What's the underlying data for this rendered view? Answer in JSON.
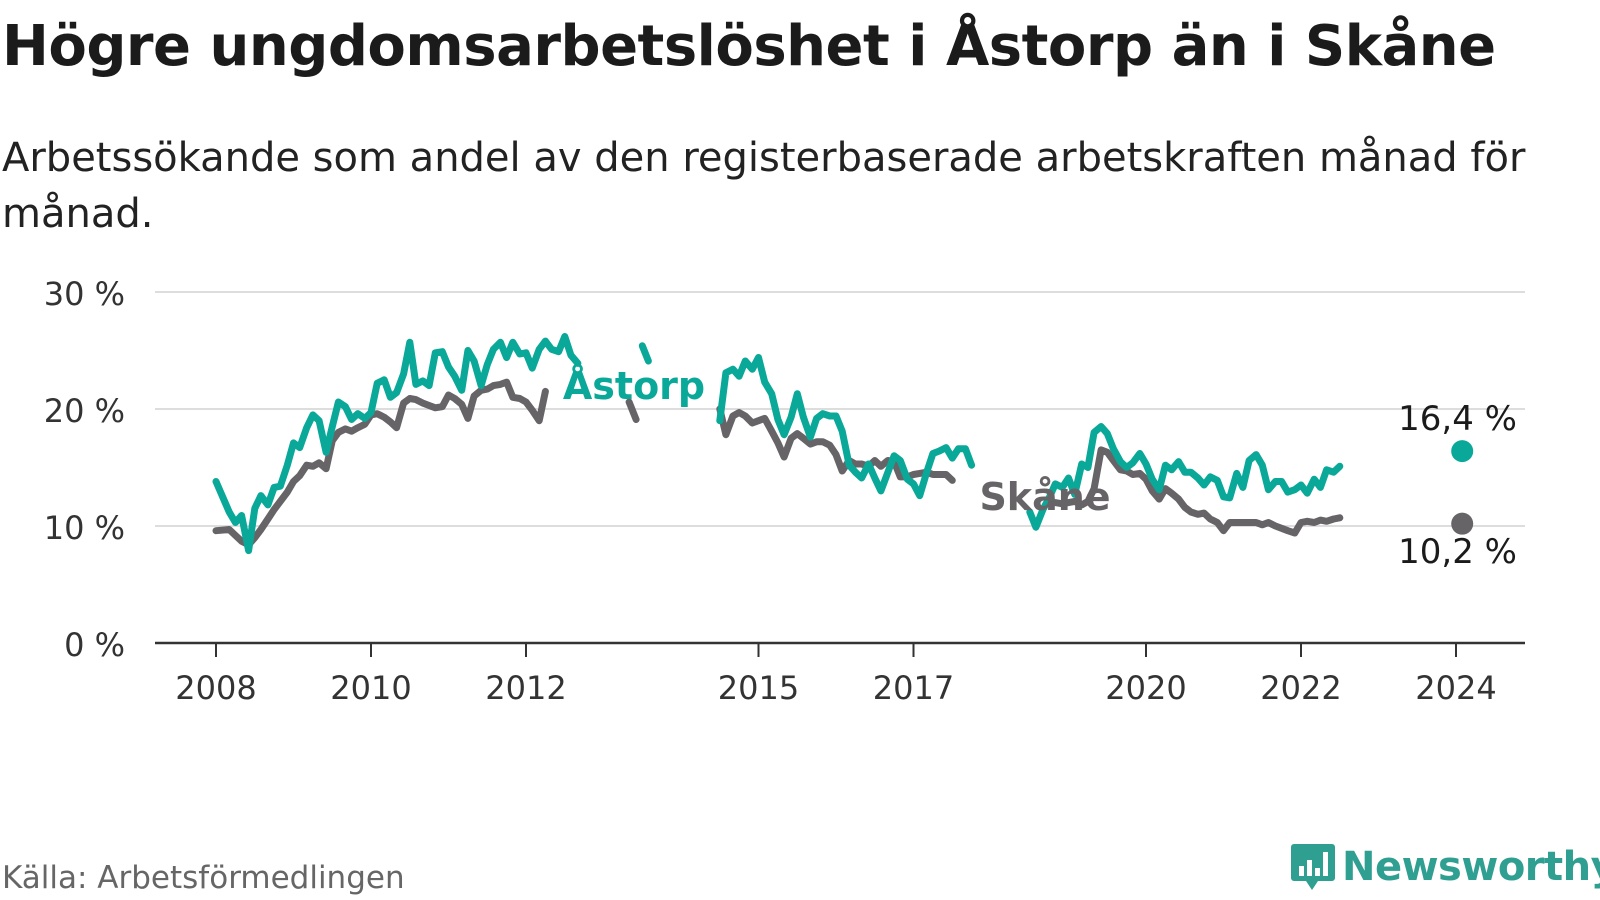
{
  "title": "Högre ungdomsarbetslöshet i Åstorp än i Skåne",
  "subtitle": "Arbetssökande som andel av den registerbaserade arbetskraften månad för månad.",
  "source": "Källa: Arbetsförmedlingen",
  "logo": {
    "text": "Newsworthy",
    "icon": "bar-chart-speech-icon"
  },
  "colors": {
    "astorp": "#0aa898",
    "skane": "#676468",
    "grid": "#dddddd",
    "axis": "#333333"
  },
  "chart_data": {
    "type": "line",
    "title": "Högre ungdomsarbetslöshet i Åstorp än i Skåne",
    "ylabel": "",
    "xlabel": "",
    "ylim": [
      0,
      30
    ],
    "xlim": [
      2008,
      2024.25
    ],
    "y_ticks": [
      0,
      10,
      20,
      30
    ],
    "y_tick_labels": [
      "0 %",
      "10 %",
      "20 %",
      "30 %"
    ],
    "x_ticks": [
      2008,
      2010,
      2012,
      2015,
      2017,
      2020,
      2022,
      2024
    ],
    "x_tick_labels": [
      "2008",
      "2010",
      "2012",
      "2015",
      "2017",
      "2020",
      "2022",
      "2024"
    ],
    "grid": true,
    "series": [
      {
        "name": "Åstorp",
        "label": "Åstorp",
        "end_label": "16,4 %",
        "end_value": 16.4,
        "color": "#0aa898",
        "points": [
          [
            2008.0,
            13.8
          ],
          [
            2008.17,
            11.2
          ],
          [
            2008.25,
            10.3
          ],
          [
            2008.33,
            10.9
          ],
          [
            2008.42,
            7.9
          ],
          [
            2008.5,
            11.5
          ],
          [
            2008.58,
            12.6
          ],
          [
            2008.67,
            11.8
          ],
          [
            2008.75,
            13.3
          ],
          [
            2008.83,
            13.4
          ],
          [
            2008.92,
            15.2
          ],
          [
            2009.0,
            17.1
          ],
          [
            2009.08,
            16.7
          ],
          [
            2009.17,
            18.4
          ],
          [
            2009.25,
            19.5
          ],
          [
            2009.33,
            19.0
          ],
          [
            2009.42,
            16.3
          ],
          [
            2009.5,
            18.5
          ],
          [
            2009.58,
            20.6
          ],
          [
            2009.67,
            20.2
          ],
          [
            2009.75,
            19.1
          ],
          [
            2009.83,
            19.6
          ],
          [
            2009.92,
            19.2
          ],
          [
            2010.0,
            19.7
          ],
          [
            2010.08,
            22.2
          ],
          [
            2010.17,
            22.5
          ],
          [
            2010.25,
            21.0
          ],
          [
            2010.33,
            21.4
          ],
          [
            2010.42,
            23.0
          ],
          [
            2010.5,
            25.7
          ],
          [
            2010.58,
            22.1
          ],
          [
            2010.67,
            22.4
          ],
          [
            2010.75,
            22.0
          ],
          [
            2010.83,
            24.8
          ],
          [
            2010.92,
            24.9
          ],
          [
            2011.0,
            23.6
          ],
          [
            2011.08,
            22.8
          ],
          [
            2011.17,
            21.6
          ],
          [
            2011.25,
            25.0
          ],
          [
            2011.33,
            24.1
          ],
          [
            2011.42,
            22.0
          ],
          [
            2011.5,
            23.8
          ],
          [
            2011.58,
            25.1
          ],
          [
            2011.67,
            25.7
          ],
          [
            2011.75,
            24.4
          ],
          [
            2011.83,
            25.7
          ],
          [
            2011.92,
            24.7
          ],
          [
            2012.0,
            24.8
          ],
          [
            2012.08,
            23.5
          ],
          [
            2012.17,
            25.1
          ],
          [
            2012.25,
            25.8
          ],
          [
            2012.33,
            25.1
          ],
          [
            2012.42,
            24.9
          ],
          [
            2012.5,
            26.2
          ],
          [
            2012.58,
            24.6
          ],
          [
            2012.67,
            23.9
          ],
          [
            2013.5,
            25.4
          ],
          [
            2013.58,
            24.1
          ],
          [
            2014.5,
            19.0
          ],
          [
            2014.58,
            23.1
          ],
          [
            2014.67,
            23.4
          ],
          [
            2014.75,
            22.8
          ],
          [
            2014.83,
            24.1
          ],
          [
            2014.92,
            23.4
          ],
          [
            2015.0,
            24.4
          ],
          [
            2015.08,
            22.3
          ],
          [
            2015.17,
            21.3
          ],
          [
            2015.25,
            19.1
          ],
          [
            2015.33,
            17.8
          ],
          [
            2015.42,
            19.3
          ],
          [
            2015.5,
            21.3
          ],
          [
            2015.58,
            19.3
          ],
          [
            2015.67,
            17.6
          ],
          [
            2015.75,
            19.2
          ],
          [
            2015.83,
            19.6
          ],
          [
            2015.92,
            19.4
          ],
          [
            2016.0,
            19.4
          ],
          [
            2016.08,
            18.1
          ],
          [
            2016.17,
            15.2
          ],
          [
            2016.25,
            14.6
          ],
          [
            2016.33,
            14.1
          ],
          [
            2016.42,
            15.3
          ],
          [
            2016.5,
            14.1
          ],
          [
            2016.58,
            13.0
          ],
          [
            2016.67,
            14.6
          ],
          [
            2016.75,
            16.0
          ],
          [
            2016.83,
            15.6
          ],
          [
            2016.92,
            14.0
          ],
          [
            2017.0,
            13.6
          ],
          [
            2017.08,
            12.6
          ],
          [
            2017.17,
            14.6
          ],
          [
            2017.25,
            16.2
          ],
          [
            2017.33,
            16.4
          ],
          [
            2017.42,
            16.7
          ],
          [
            2017.5,
            15.8
          ],
          [
            2017.58,
            16.6
          ],
          [
            2017.67,
            16.6
          ],
          [
            2017.75,
            15.2
          ],
          [
            2018.5,
            11.2
          ],
          [
            2018.58,
            9.9
          ],
          [
            2018.67,
            11.4
          ],
          [
            2018.75,
            12.4
          ],
          [
            2018.83,
            13.6
          ],
          [
            2018.92,
            13.3
          ],
          [
            2019.0,
            14.1
          ],
          [
            2019.08,
            12.7
          ],
          [
            2019.17,
            15.3
          ],
          [
            2019.25,
            15.0
          ],
          [
            2019.33,
            18.0
          ],
          [
            2019.42,
            18.5
          ],
          [
            2019.5,
            17.9
          ],
          [
            2019.58,
            16.6
          ],
          [
            2019.67,
            15.5
          ],
          [
            2019.75,
            15.0
          ],
          [
            2019.83,
            15.4
          ],
          [
            2019.92,
            16.2
          ],
          [
            2020.0,
            15.3
          ],
          [
            2020.08,
            14.0
          ],
          [
            2020.17,
            13.1
          ],
          [
            2020.25,
            15.2
          ],
          [
            2020.33,
            14.8
          ],
          [
            2020.42,
            15.5
          ],
          [
            2020.5,
            14.6
          ],
          [
            2020.58,
            14.6
          ],
          [
            2020.67,
            14.1
          ],
          [
            2020.75,
            13.5
          ],
          [
            2020.83,
            14.2
          ],
          [
            2020.92,
            13.9
          ],
          [
            2021.0,
            12.5
          ],
          [
            2021.08,
            12.4
          ],
          [
            2021.17,
            14.5
          ],
          [
            2021.25,
            13.3
          ],
          [
            2021.33,
            15.6
          ],
          [
            2021.42,
            16.1
          ],
          [
            2021.5,
            15.2
          ],
          [
            2021.58,
            13.1
          ],
          [
            2021.67,
            13.8
          ],
          [
            2021.75,
            13.8
          ],
          [
            2021.83,
            12.9
          ],
          [
            2021.92,
            13.1
          ],
          [
            2022.0,
            13.5
          ],
          [
            2022.08,
            12.8
          ],
          [
            2022.17,
            14.0
          ],
          [
            2022.25,
            13.3
          ],
          [
            2022.33,
            14.8
          ],
          [
            2022.42,
            14.6
          ],
          [
            2022.5,
            15.1
          ],
          [
            2024.08,
            16.4
          ]
        ]
      },
      {
        "name": "Skåne",
        "label": "Skåne",
        "end_label": "10,2 %",
        "end_value": 10.2,
        "color": "#676468",
        "points": [
          [
            2008.0,
            9.6
          ],
          [
            2008.17,
            9.7
          ],
          [
            2008.25,
            9.2
          ],
          [
            2008.33,
            8.7
          ],
          [
            2008.42,
            8.4
          ],
          [
            2008.5,
            9.0
          ],
          [
            2008.58,
            9.7
          ],
          [
            2008.67,
            10.6
          ],
          [
            2008.75,
            11.4
          ],
          [
            2008.83,
            12.1
          ],
          [
            2008.92,
            12.9
          ],
          [
            2009.0,
            13.8
          ],
          [
            2009.08,
            14.3
          ],
          [
            2009.17,
            15.2
          ],
          [
            2009.25,
            15.1
          ],
          [
            2009.33,
            15.4
          ],
          [
            2009.42,
            14.9
          ],
          [
            2009.5,
            17.3
          ],
          [
            2009.58,
            18.0
          ],
          [
            2009.67,
            18.3
          ],
          [
            2009.75,
            18.1
          ],
          [
            2009.83,
            18.4
          ],
          [
            2009.92,
            18.7
          ],
          [
            2010.0,
            19.5
          ],
          [
            2010.08,
            19.6
          ],
          [
            2010.17,
            19.3
          ],
          [
            2010.25,
            18.9
          ],
          [
            2010.33,
            18.4
          ],
          [
            2010.42,
            20.5
          ],
          [
            2010.5,
            20.9
          ],
          [
            2010.58,
            20.8
          ],
          [
            2010.67,
            20.5
          ],
          [
            2010.75,
            20.3
          ],
          [
            2010.83,
            20.1
          ],
          [
            2010.92,
            20.2
          ],
          [
            2011.0,
            21.2
          ],
          [
            2011.08,
            20.9
          ],
          [
            2011.17,
            20.4
          ],
          [
            2011.25,
            19.2
          ],
          [
            2011.33,
            21.1
          ],
          [
            2011.42,
            21.6
          ],
          [
            2011.5,
            21.7
          ],
          [
            2011.58,
            22.0
          ],
          [
            2011.67,
            22.1
          ],
          [
            2011.75,
            22.3
          ],
          [
            2011.83,
            21.0
          ],
          [
            2011.92,
            20.9
          ],
          [
            2012.0,
            20.6
          ],
          [
            2012.08,
            19.9
          ],
          [
            2012.17,
            19.0
          ],
          [
            2012.25,
            21.5
          ],
          [
            2013.33,
            20.6
          ],
          [
            2013.42,
            19.1
          ],
          [
            2014.5,
            20.0
          ],
          [
            2014.58,
            17.8
          ],
          [
            2014.67,
            19.4
          ],
          [
            2014.75,
            19.7
          ],
          [
            2014.83,
            19.4
          ],
          [
            2014.92,
            18.8
          ],
          [
            2015.0,
            19.0
          ],
          [
            2015.08,
            19.2
          ],
          [
            2015.17,
            18.1
          ],
          [
            2015.25,
            17.1
          ],
          [
            2015.33,
            15.9
          ],
          [
            2015.42,
            17.5
          ],
          [
            2015.5,
            17.9
          ],
          [
            2015.58,
            17.5
          ],
          [
            2015.67,
            17.0
          ],
          [
            2015.75,
            17.2
          ],
          [
            2015.83,
            17.2
          ],
          [
            2015.92,
            16.9
          ],
          [
            2016.0,
            16.1
          ],
          [
            2016.08,
            14.7
          ],
          [
            2016.17,
            15.6
          ],
          [
            2016.25,
            15.3
          ],
          [
            2016.33,
            15.3
          ],
          [
            2016.42,
            15.1
          ],
          [
            2016.5,
            15.6
          ],
          [
            2016.58,
            15.1
          ],
          [
            2016.67,
            15.6
          ],
          [
            2016.75,
            15.5
          ],
          [
            2016.83,
            14.2
          ],
          [
            2016.92,
            14.2
          ],
          [
            2017.0,
            14.4
          ],
          [
            2017.08,
            14.5
          ],
          [
            2017.17,
            14.6
          ],
          [
            2017.25,
            14.4
          ],
          [
            2017.33,
            14.4
          ],
          [
            2017.42,
            14.4
          ],
          [
            2017.5,
            13.9
          ],
          [
            2018.75,
            12.0
          ],
          [
            2018.83,
            12.0
          ],
          [
            2018.92,
            11.9
          ],
          [
            2019.0,
            12.0
          ],
          [
            2019.08,
            12.1
          ],
          [
            2019.17,
            11.8
          ],
          [
            2019.25,
            12.1
          ],
          [
            2019.33,
            13.2
          ],
          [
            2019.42,
            16.5
          ],
          [
            2019.5,
            16.3
          ],
          [
            2019.58,
            15.6
          ],
          [
            2019.67,
            14.8
          ],
          [
            2019.75,
            14.7
          ],
          [
            2019.83,
            14.4
          ],
          [
            2019.92,
            14.5
          ],
          [
            2020.0,
            14.0
          ],
          [
            2020.08,
            13.0
          ],
          [
            2020.17,
            12.3
          ],
          [
            2020.25,
            13.2
          ],
          [
            2020.33,
            12.8
          ],
          [
            2020.42,
            12.3
          ],
          [
            2020.5,
            11.6
          ],
          [
            2020.58,
            11.2
          ],
          [
            2020.67,
            11.0
          ],
          [
            2020.75,
            11.1
          ],
          [
            2020.83,
            10.6
          ],
          [
            2020.92,
            10.3
          ],
          [
            2021.0,
            9.6
          ],
          [
            2021.08,
            10.3
          ],
          [
            2021.17,
            10.3
          ],
          [
            2021.25,
            10.3
          ],
          [
            2021.33,
            10.3
          ],
          [
            2021.42,
            10.3
          ],
          [
            2021.5,
            10.1
          ],
          [
            2021.58,
            10.3
          ],
          [
            2021.67,
            10.0
          ],
          [
            2021.75,
            9.8
          ],
          [
            2021.83,
            9.6
          ],
          [
            2021.92,
            9.4
          ],
          [
            2022.0,
            10.3
          ],
          [
            2022.08,
            10.4
          ],
          [
            2022.17,
            10.3
          ],
          [
            2022.25,
            10.5
          ],
          [
            2022.33,
            10.4
          ],
          [
            2022.42,
            10.6
          ],
          [
            2022.5,
            10.7
          ],
          [
            2024.08,
            10.2
          ]
        ]
      }
    ]
  }
}
